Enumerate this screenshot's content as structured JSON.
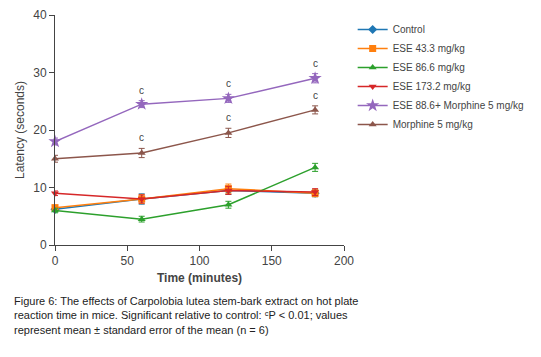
{
  "chart_data": {
    "type": "line",
    "x": [
      0,
      60,
      120,
      180
    ],
    "series": [
      {
        "name": "Control",
        "values": [
          6.2,
          8.0,
          9.5,
          9.0
        ],
        "yerr": [
          0.4,
          0.9,
          0.7,
          0.6
        ],
        "marker": "diamond"
      },
      {
        "name": "ESE 43.3 mg/kg",
        "values": [
          6.5,
          8.0,
          9.8,
          9.0
        ],
        "yerr": [
          0.4,
          0.8,
          0.8,
          0.6
        ],
        "marker": "square"
      },
      {
        "name": "ESE 86.6 mg/kg",
        "values": [
          6.0,
          4.5,
          7.0,
          13.5
        ],
        "yerr": [
          0.4,
          0.5,
          0.6,
          0.7
        ],
        "marker": "triangle-up"
      },
      {
        "name": "ESE 173.2 mg/kg",
        "values": [
          9.0,
          8.0,
          9.5,
          9.2
        ],
        "yerr": [
          0.4,
          0.7,
          0.7,
          0.6
        ],
        "marker": "triangle-down"
      },
      {
        "name": "ESE 88.6+ Morphine 5 mg/kg",
        "values": [
          18.0,
          24.5,
          25.5,
          29.0
        ],
        "yerr": [
          0.6,
          0.6,
          0.7,
          0.8
        ],
        "marker": "star",
        "annotations": [
          {
            "x": 60,
            "text": "c"
          },
          {
            "x": 120,
            "text": "c"
          },
          {
            "x": 180,
            "text": "c"
          }
        ]
      },
      {
        "name": "Morphine 5 mg/kg",
        "values": [
          15.0,
          16.0,
          19.5,
          23.5
        ],
        "yerr": [
          0.6,
          0.8,
          0.8,
          0.7
        ],
        "marker": "triangle-up",
        "annotations": [
          {
            "x": 60,
            "text": "c"
          },
          {
            "x": 120,
            "text": "c"
          },
          {
            "x": 180,
            "text": "c"
          }
        ]
      }
    ],
    "xlabel": "Time (minutes)",
    "ylabel": "Latency (seconds)",
    "xlim": [
      0,
      200
    ],
    "ylim": [
      0,
      40
    ],
    "xticks": [
      0,
      50,
      100,
      150,
      200
    ],
    "yticks": [
      0,
      10,
      20,
      30,
      40
    ],
    "grid": false,
    "legend": "right",
    "caption": [
      "Figure 6: The effects of Carpolobia lutea stem-bark extract on hot plate",
      "reaction time in mice. Significant relative to control: ᶜP < 0.01; values",
      "represent mean ± standard error of the mean (n = 6)"
    ]
  }
}
